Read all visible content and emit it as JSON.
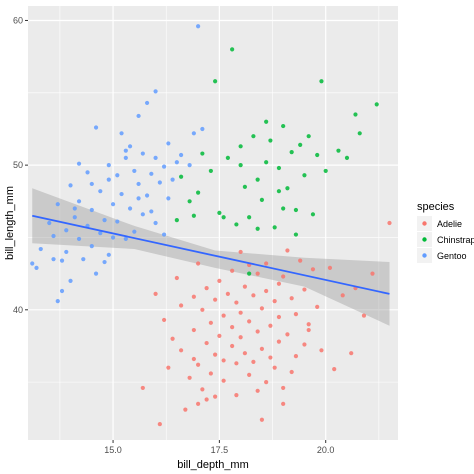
{
  "chart_data": {
    "type": "scatter",
    "title": "",
    "xlabel": "bill_depth_mm",
    "ylabel": "bill_length_mm",
    "xlim": [
      13.0,
      21.7
    ],
    "ylim": [
      31.0,
      61.0
    ],
    "x_ticks": [
      15.0,
      17.5,
      20.0
    ],
    "x_tick_labels": [
      "15.0",
      "17.5",
      "20.0"
    ],
    "y_ticks": [
      40,
      50,
      60
    ],
    "y_tick_labels": [
      "40",
      "50",
      "60"
    ],
    "grid": true,
    "panel_background": "#ebebeb",
    "legend": {
      "title": "species",
      "position": "right"
    },
    "regression": {
      "method": "lm",
      "x": [
        13.1,
        21.5
      ],
      "y": [
        46.5,
        41.1
      ],
      "se_band": [
        [
          13.1,
          44.6,
          48.4
        ],
        [
          15.5,
          44.2,
          45.8
        ],
        [
          17.4,
          42.9,
          44.1
        ],
        [
          19.5,
          41.6,
          43.6
        ],
        [
          21.5,
          38.9,
          43.3
        ]
      ],
      "color": "#3366ff",
      "band_color": "#999999"
    },
    "series": [
      {
        "name": "Adelie",
        "color": "#f8766d",
        "points": [
          [
            16.1,
            32.1
          ],
          [
            16.7,
            33.1
          ],
          [
            17.0,
            33.5
          ],
          [
            17.4,
            34.0
          ],
          [
            17.9,
            34.1
          ],
          [
            18.4,
            34.4
          ],
          [
            19.0,
            34.6
          ],
          [
            17.1,
            34.5
          ],
          [
            18.6,
            35.0
          ],
          [
            17.6,
            35.1
          ],
          [
            16.8,
            35.3
          ],
          [
            18.2,
            35.5
          ],
          [
            17.3,
            35.6
          ],
          [
            19.2,
            35.7
          ],
          [
            18.8,
            36.0
          ],
          [
            17.0,
            36.2
          ],
          [
            18.3,
            36.4
          ],
          [
            17.6,
            36.5
          ],
          [
            16.9,
            36.6
          ],
          [
            18.7,
            36.7
          ],
          [
            19.3,
            36.8
          ],
          [
            17.4,
            36.9
          ],
          [
            18.1,
            37.0
          ],
          [
            16.6,
            37.2
          ],
          [
            18.5,
            37.3
          ],
          [
            17.8,
            37.5
          ],
          [
            19.5,
            37.6
          ],
          [
            17.2,
            37.7
          ],
          [
            18.9,
            37.8
          ],
          [
            16.4,
            38.0
          ],
          [
            18.0,
            38.1
          ],
          [
            17.5,
            38.2
          ],
          [
            19.1,
            38.3
          ],
          [
            18.4,
            38.5
          ],
          [
            16.9,
            38.6
          ],
          [
            17.8,
            38.8
          ],
          [
            18.7,
            38.9
          ],
          [
            19.6,
            39.0
          ],
          [
            17.3,
            39.1
          ],
          [
            18.2,
            39.2
          ],
          [
            16.2,
            39.3
          ],
          [
            18.9,
            39.5
          ],
          [
            17.6,
            39.6
          ],
          [
            19.3,
            39.7
          ],
          [
            18.0,
            39.8
          ],
          [
            17.1,
            40.0
          ],
          [
            18.5,
            40.1
          ],
          [
            19.8,
            40.2
          ],
          [
            16.6,
            40.3
          ],
          [
            17.9,
            40.5
          ],
          [
            18.8,
            40.6
          ],
          [
            17.4,
            40.7
          ],
          [
            19.2,
            40.8
          ],
          [
            18.3,
            41.0
          ],
          [
            16.0,
            41.1
          ],
          [
            17.7,
            41.1
          ],
          [
            18.6,
            41.3
          ],
          [
            19.5,
            41.4
          ],
          [
            17.2,
            41.5
          ],
          [
            18.1,
            41.6
          ],
          [
            20.7,
            41.5
          ],
          [
            18.9,
            41.8
          ],
          [
            17.5,
            42.0
          ],
          [
            16.5,
            42.2
          ],
          [
            19.0,
            42.3
          ],
          [
            18.4,
            42.5
          ],
          [
            17.8,
            42.7
          ],
          [
            19.7,
            42.8
          ],
          [
            18.2,
            43.1
          ],
          [
            17.0,
            43.2
          ],
          [
            20.1,
            42.9
          ],
          [
            21.5,
            46.0
          ],
          [
            21.1,
            42.5
          ],
          [
            19.4,
            43.4
          ],
          [
            18.6,
            43.2
          ],
          [
            20.4,
            41.0
          ],
          [
            19.9,
            37.2
          ],
          [
            20.6,
            37.0
          ],
          [
            16.3,
            36.0
          ],
          [
            15.7,
            34.6
          ],
          [
            17.2,
            33.8
          ],
          [
            19.0,
            33.5
          ],
          [
            18.5,
            32.4
          ],
          [
            20.2,
            35.9
          ],
          [
            19.6,
            38.6
          ],
          [
            20.9,
            39.6
          ],
          [
            19.1,
            44.1
          ],
          [
            18.0,
            44.0
          ],
          [
            16.9,
            40.9
          ],
          [
            17.9,
            36.3
          ]
        ]
      },
      {
        "name": "Chinstrap",
        "color": "#00ba38",
        "points": [
          [
            16.5,
            46.2
          ],
          [
            16.8,
            47.5
          ],
          [
            17.0,
            48.1
          ],
          [
            17.3,
            49.6
          ],
          [
            17.5,
            46.7
          ],
          [
            17.7,
            50.5
          ],
          [
            17.9,
            45.9
          ],
          [
            18.0,
            51.3
          ],
          [
            18.1,
            48.5
          ],
          [
            18.2,
            46.4
          ],
          [
            18.3,
            52.0
          ],
          [
            18.4,
            49.0
          ],
          [
            18.5,
            47.6
          ],
          [
            18.6,
            50.2
          ],
          [
            18.7,
            51.7
          ],
          [
            18.8,
            45.7
          ],
          [
            18.9,
            49.8
          ],
          [
            19.0,
            52.7
          ],
          [
            19.1,
            48.4
          ],
          [
            19.2,
            50.9
          ],
          [
            19.3,
            46.9
          ],
          [
            19.4,
            51.4
          ],
          [
            19.5,
            49.3
          ],
          [
            19.6,
            52.0
          ],
          [
            19.8,
            50.7
          ],
          [
            19.9,
            55.8
          ],
          [
            20.0,
            49.6
          ],
          [
            20.3,
            51.0
          ],
          [
            20.7,
            53.5
          ],
          [
            20.8,
            52.2
          ],
          [
            21.2,
            54.2
          ],
          [
            17.8,
            58.0
          ],
          [
            17.4,
            55.8
          ],
          [
            16.9,
            46.5
          ],
          [
            18.4,
            45.6
          ],
          [
            19.0,
            47.0
          ],
          [
            19.7,
            46.6
          ],
          [
            18.6,
            53.0
          ],
          [
            18.0,
            50.0
          ],
          [
            17.6,
            46.4
          ],
          [
            16.6,
            49.2
          ],
          [
            18.9,
            48.2
          ],
          [
            19.3,
            45.2
          ],
          [
            17.1,
            50.8
          ],
          [
            20.5,
            50.5
          ],
          [
            18.2,
            42.5
          ]
        ]
      },
      {
        "name": "Gentoo",
        "color": "#619cff",
        "points": [
          [
            13.2,
            42.9
          ],
          [
            13.3,
            44.2
          ],
          [
            13.5,
            46.0
          ],
          [
            13.6,
            45.1
          ],
          [
            13.7,
            40.6
          ],
          [
            13.7,
            47.3
          ],
          [
            13.8,
            43.4
          ],
          [
            13.9,
            45.5
          ],
          [
            14.0,
            48.6
          ],
          [
            14.0,
            42.0
          ],
          [
            14.1,
            46.4
          ],
          [
            14.2,
            44.9
          ],
          [
            14.2,
            47.5
          ],
          [
            14.3,
            43.5
          ],
          [
            14.4,
            45.8
          ],
          [
            14.4,
            49.5
          ],
          [
            14.5,
            44.4
          ],
          [
            14.5,
            46.9
          ],
          [
            14.6,
            42.5
          ],
          [
            14.7,
            48.2
          ],
          [
            14.7,
            45.3
          ],
          [
            14.8,
            46.2
          ],
          [
            14.9,
            50.0
          ],
          [
            14.9,
            43.8
          ],
          [
            15.0,
            47.3
          ],
          [
            15.0,
            45.0
          ],
          [
            15.1,
            49.3
          ],
          [
            15.1,
            46.1
          ],
          [
            15.2,
            48.0
          ],
          [
            15.3,
            44.9
          ],
          [
            15.3,
            50.5
          ],
          [
            15.4,
            47.0
          ],
          [
            15.5,
            49.6
          ],
          [
            15.5,
            45.4
          ],
          [
            15.6,
            48.7
          ],
          [
            15.7,
            50.8
          ],
          [
            15.7,
            46.6
          ],
          [
            15.8,
            47.9
          ],
          [
            15.9,
            49.4
          ],
          [
            16.0,
            50.5
          ],
          [
            16.0,
            46.0
          ],
          [
            16.1,
            48.8
          ],
          [
            16.2,
            49.9
          ],
          [
            16.3,
            47.7
          ],
          [
            16.3,
            51.5
          ],
          [
            16.4,
            49.0
          ],
          [
            16.5,
            50.2
          ],
          [
            15.8,
            54.3
          ],
          [
            16.0,
            55.1
          ],
          [
            15.6,
            53.4
          ],
          [
            17.0,
            59.6
          ],
          [
            16.9,
            52.2
          ],
          [
            17.1,
            52.5
          ],
          [
            16.8,
            50.0
          ],
          [
            15.2,
            52.2
          ],
          [
            14.6,
            52.6
          ],
          [
            14.2,
            50.1
          ],
          [
            13.6,
            43.5
          ],
          [
            14.8,
            43.3
          ],
          [
            13.1,
            43.2
          ],
          [
            13.8,
            41.3
          ],
          [
            14.1,
            47.0
          ],
          [
            15.4,
            51.3
          ],
          [
            16.6,
            50.7
          ],
          [
            15.9,
            46.8
          ],
          [
            15.3,
            51.0
          ],
          [
            14.9,
            49.0
          ],
          [
            15.6,
            47.7
          ],
          [
            16.2,
            45.2
          ],
          [
            14.5,
            48.7
          ],
          [
            13.9,
            44.0
          ]
        ]
      }
    ]
  }
}
